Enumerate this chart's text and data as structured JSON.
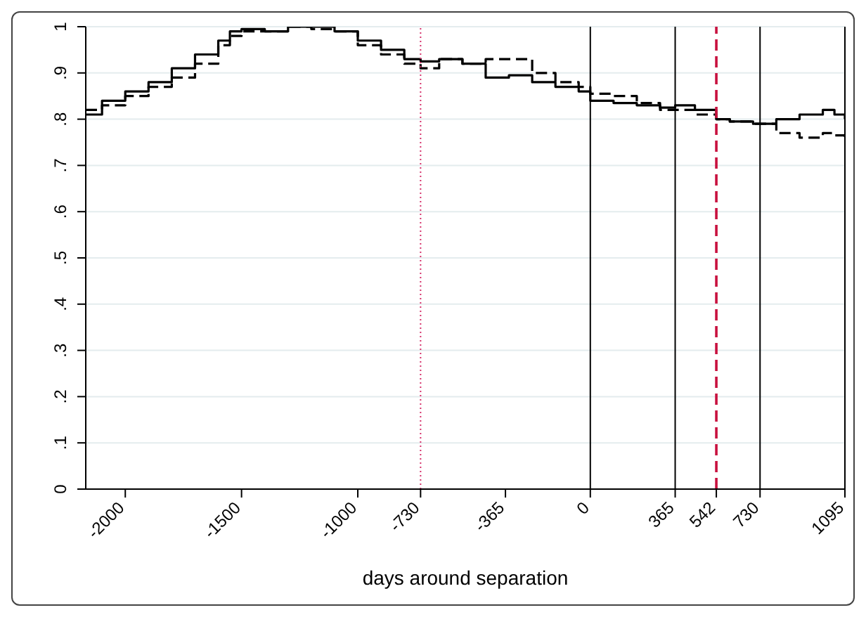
{
  "chart_data": {
    "type": "step",
    "xlabel": "days around separation",
    "x": [
      -2170,
      -2100,
      -2000,
      -1900,
      -1800,
      -1700,
      -1600,
      -1550,
      -1500,
      -1400,
      -1300,
      -1200,
      -1100,
      -1000,
      -900,
      -800,
      -730,
      -650,
      -550,
      -450,
      -350,
      -250,
      -150,
      -50,
      0,
      100,
      200,
      300,
      365,
      450,
      542,
      600,
      700,
      800,
      900,
      1000,
      1050,
      1095
    ],
    "series": [
      {
        "color": "#000000",
        "line_style": "solid",
        "values": [
          0.81,
          0.84,
          0.86,
          0.88,
          0.91,
          0.94,
          0.97,
          0.99,
          0.995,
          0.99,
          1.0,
          1.0,
          0.99,
          0.97,
          0.95,
          0.93,
          0.925,
          0.93,
          0.92,
          0.89,
          0.895,
          0.88,
          0.87,
          0.86,
          0.84,
          0.835,
          0.83,
          0.825,
          0.83,
          0.82,
          0.8,
          0.795,
          0.79,
          0.8,
          0.81,
          0.82,
          0.81,
          0.8
        ]
      },
      {
        "color": "#000000",
        "line_style": "dashed",
        "values": [
          0.82,
          0.83,
          0.85,
          0.87,
          0.89,
          0.92,
          0.96,
          0.98,
          0.99,
          0.99,
          1.0,
          0.995,
          0.99,
          0.96,
          0.94,
          0.92,
          0.91,
          0.93,
          0.92,
          0.93,
          0.93,
          0.9,
          0.88,
          0.87,
          0.855,
          0.85,
          0.835,
          0.82,
          0.82,
          0.81,
          0.8,
          0.795,
          0.79,
          0.77,
          0.76,
          0.77,
          0.765,
          0.76
        ]
      }
    ],
    "xlim": [
      -2170,
      1095
    ],
    "xticks": [
      -2000,
      -1500,
      -1000,
      -730,
      -365,
      0,
      365,
      542,
      730,
      1095
    ],
    "ylim": [
      0,
      1
    ],
    "yticks": [
      {
        "value": 0,
        "label": "0"
      },
      {
        "value": 0.1,
        "label": ".1"
      },
      {
        "value": 0.2,
        "label": ".2"
      },
      {
        "value": 0.3,
        "label": ".3"
      },
      {
        "value": 0.4,
        "label": ".4"
      },
      {
        "value": 0.5,
        "label": ".5"
      },
      {
        "value": 0.6,
        "label": ".6"
      },
      {
        "value": 0.7,
        "label": ".7"
      },
      {
        "value": 0.8,
        "label": ".8"
      },
      {
        "value": 0.9,
        "label": ".9"
      },
      {
        "value": 1,
        "label": "1"
      }
    ],
    "ref_lines": [
      {
        "axis": "x",
        "value": -730,
        "color": "#d6336c",
        "line_style": "dotted"
      },
      {
        "axis": "x",
        "value": 0,
        "color": "#000000",
        "line_style": "solid"
      },
      {
        "axis": "x",
        "value": 365,
        "color": "#000000",
        "line_style": "solid"
      },
      {
        "axis": "x",
        "value": 542,
        "color": "#c8103e",
        "line_style": "dashed"
      },
      {
        "axis": "x",
        "value": 730,
        "color": "#000000",
        "line_style": "solid"
      }
    ],
    "grid": "y",
    "legend": false,
    "marker": "none"
  }
}
